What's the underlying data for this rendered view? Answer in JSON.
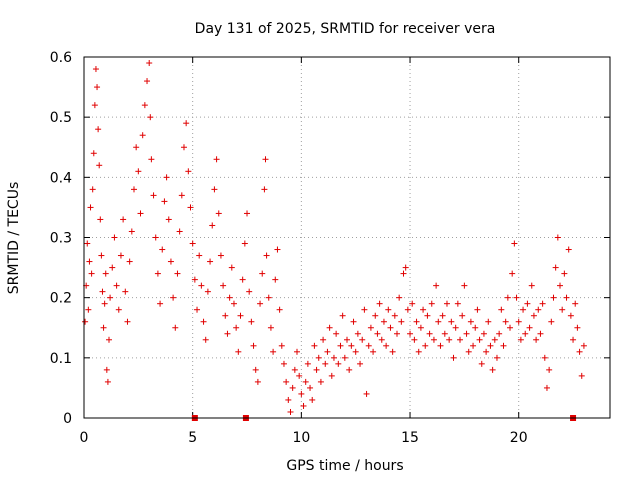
{
  "chart_data": {
    "type": "scatter",
    "title": "Day 131 of 2025, SRMTID for receiver vera",
    "xlabel": "GPS time / hours",
    "ylabel": "SRMTID / TECUs",
    "xlim": [
      0,
      24.2
    ],
    "ylim": [
      0,
      0.6
    ],
    "xticks": [
      0,
      5,
      10,
      15,
      20
    ],
    "xtick_labels": [
      "0",
      "5",
      "10",
      "15",
      "20"
    ],
    "yticks": [
      0,
      0.1,
      0.2,
      0.3,
      0.4,
      0.5,
      0.6
    ],
    "ytick_labels": [
      "0",
      "0.1",
      "0.2",
      "0.3",
      "0.4",
      "0.5",
      "0.6"
    ],
    "grid": true,
    "marker": "+",
    "color": "#e00000",
    "series": [
      {
        "name": "SRMTID",
        "points": [
          [
            0.05,
            0.16
          ],
          [
            0.1,
            0.22
          ],
          [
            0.15,
            0.29
          ],
          [
            0.2,
            0.18
          ],
          [
            0.25,
            0.26
          ],
          [
            0.3,
            0.35
          ],
          [
            0.35,
            0.24
          ],
          [
            0.4,
            0.38
          ],
          [
            0.45,
            0.44
          ],
          [
            0.5,
            0.52
          ],
          [
            0.55,
            0.58
          ],
          [
            0.6,
            0.55
          ],
          [
            0.65,
            0.48
          ],
          [
            0.7,
            0.42
          ],
          [
            0.75,
            0.33
          ],
          [
            0.8,
            0.27
          ],
          [
            0.85,
            0.21
          ],
          [
            0.9,
            0.15
          ],
          [
            0.95,
            0.19
          ],
          [
            1.0,
            0.24
          ],
          [
            1.05,
            0.08
          ],
          [
            1.1,
            0.06
          ],
          [
            1.15,
            0.13
          ],
          [
            1.2,
            0.2
          ],
          [
            1.3,
            0.25
          ],
          [
            1.4,
            0.3
          ],
          [
            1.5,
            0.22
          ],
          [
            1.6,
            0.18
          ],
          [
            1.7,
            0.27
          ],
          [
            1.8,
            0.33
          ],
          [
            1.9,
            0.21
          ],
          [
            2.0,
            0.16
          ],
          [
            2.1,
            0.26
          ],
          [
            2.2,
            0.31
          ],
          [
            2.3,
            0.38
          ],
          [
            2.4,
            0.45
          ],
          [
            2.5,
            0.41
          ],
          [
            2.6,
            0.34
          ],
          [
            2.7,
            0.47
          ],
          [
            2.8,
            0.52
          ],
          [
            2.9,
            0.56
          ],
          [
            3.0,
            0.59
          ],
          [
            3.05,
            0.5
          ],
          [
            3.1,
            0.43
          ],
          [
            3.2,
            0.37
          ],
          [
            3.3,
            0.3
          ],
          [
            3.4,
            0.24
          ],
          [
            3.5,
            0.19
          ],
          [
            3.6,
            0.28
          ],
          [
            3.7,
            0.36
          ],
          [
            3.8,
            0.4
          ],
          [
            3.9,
            0.33
          ],
          [
            4.0,
            0.26
          ],
          [
            4.1,
            0.2
          ],
          [
            4.2,
            0.15
          ],
          [
            4.3,
            0.24
          ],
          [
            4.4,
            0.31
          ],
          [
            4.5,
            0.37
          ],
          [
            4.6,
            0.45
          ],
          [
            4.7,
            0.49
          ],
          [
            4.8,
            0.41
          ],
          [
            4.9,
            0.35
          ],
          [
            5.0,
            0.29
          ],
          [
            5.1,
            0.23
          ],
          [
            5.2,
            0.18
          ],
          [
            5.3,
            0.27
          ],
          [
            5.4,
            0.22
          ],
          [
            5.5,
            0.16
          ],
          [
            5.6,
            0.13
          ],
          [
            5.7,
            0.21
          ],
          [
            5.8,
            0.26
          ],
          [
            5.9,
            0.32
          ],
          [
            6.0,
            0.38
          ],
          [
            6.1,
            0.43
          ],
          [
            6.2,
            0.34
          ],
          [
            6.3,
            0.27
          ],
          [
            6.4,
            0.22
          ],
          [
            6.5,
            0.17
          ],
          [
            6.6,
            0.14
          ],
          [
            6.7,
            0.2
          ],
          [
            6.8,
            0.25
          ],
          [
            6.9,
            0.19
          ],
          [
            7.0,
            0.15
          ],
          [
            7.1,
            0.11
          ],
          [
            7.2,
            0.17
          ],
          [
            7.3,
            0.23
          ],
          [
            7.4,
            0.29
          ],
          [
            7.5,
            0.34
          ],
          [
            7.6,
            0.21
          ],
          [
            7.7,
            0.16
          ],
          [
            7.8,
            0.12
          ],
          [
            7.9,
            0.08
          ],
          [
            8.0,
            0.06
          ],
          [
            8.1,
            0.19
          ],
          [
            8.2,
            0.24
          ],
          [
            8.3,
            0.38
          ],
          [
            8.35,
            0.43
          ],
          [
            8.4,
            0.27
          ],
          [
            8.5,
            0.2
          ],
          [
            8.6,
            0.15
          ],
          [
            8.7,
            0.11
          ],
          [
            8.8,
            0.23
          ],
          [
            8.9,
            0.28
          ],
          [
            9.0,
            0.18
          ],
          [
            9.1,
            0.12
          ],
          [
            9.2,
            0.09
          ],
          [
            9.3,
            0.06
          ],
          [
            9.4,
            0.03
          ],
          [
            9.5,
            0.01
          ],
          [
            9.6,
            0.05
          ],
          [
            9.7,
            0.08
          ],
          [
            9.8,
            0.11
          ],
          [
            9.9,
            0.07
          ],
          [
            10.0,
            0.04
          ],
          [
            10.1,
            0.02
          ],
          [
            10.2,
            0.06
          ],
          [
            10.3,
            0.09
          ],
          [
            10.4,
            0.05
          ],
          [
            10.5,
            0.03
          ],
          [
            10.6,
            0.12
          ],
          [
            10.7,
            0.08
          ],
          [
            10.8,
            0.1
          ],
          [
            10.9,
            0.06
          ],
          [
            11.0,
            0.13
          ],
          [
            11.1,
            0.09
          ],
          [
            11.2,
            0.11
          ],
          [
            11.3,
            0.15
          ],
          [
            11.4,
            0.07
          ],
          [
            11.5,
            0.1
          ],
          [
            11.6,
            0.14
          ],
          [
            11.7,
            0.09
          ],
          [
            11.8,
            0.12
          ],
          [
            11.9,
            0.17
          ],
          [
            12.0,
            0.1
          ],
          [
            12.1,
            0.13
          ],
          [
            12.2,
            0.08
          ],
          [
            12.3,
            0.12
          ],
          [
            12.4,
            0.16
          ],
          [
            12.5,
            0.11
          ],
          [
            12.6,
            0.14
          ],
          [
            12.7,
            0.09
          ],
          [
            12.8,
            0.13
          ],
          [
            12.9,
            0.18
          ],
          [
            13.0,
            0.04
          ],
          [
            13.1,
            0.12
          ],
          [
            13.2,
            0.15
          ],
          [
            13.3,
            0.11
          ],
          [
            13.4,
            0.17
          ],
          [
            13.5,
            0.14
          ],
          [
            13.6,
            0.19
          ],
          [
            13.7,
            0.13
          ],
          [
            13.8,
            0.16
          ],
          [
            13.9,
            0.12
          ],
          [
            14.0,
            0.18
          ],
          [
            14.1,
            0.15
          ],
          [
            14.2,
            0.11
          ],
          [
            14.3,
            0.17
          ],
          [
            14.4,
            0.14
          ],
          [
            14.5,
            0.2
          ],
          [
            14.6,
            0.16
          ],
          [
            14.7,
            0.24
          ],
          [
            14.8,
            0.25
          ],
          [
            14.9,
            0.18
          ],
          [
            15.0,
            0.14
          ],
          [
            15.1,
            0.19
          ],
          [
            15.2,
            0.13
          ],
          [
            15.3,
            0.16
          ],
          [
            15.4,
            0.11
          ],
          [
            15.5,
            0.15
          ],
          [
            15.6,
            0.18
          ],
          [
            15.7,
            0.12
          ],
          [
            15.8,
            0.17
          ],
          [
            15.9,
            0.14
          ],
          [
            16.0,
            0.19
          ],
          [
            16.1,
            0.13
          ],
          [
            16.2,
            0.22
          ],
          [
            16.3,
            0.16
          ],
          [
            16.4,
            0.12
          ],
          [
            16.5,
            0.17
          ],
          [
            16.6,
            0.14
          ],
          [
            16.7,
            0.19
          ],
          [
            16.8,
            0.13
          ],
          [
            16.9,
            0.16
          ],
          [
            17.0,
            0.1
          ],
          [
            17.1,
            0.15
          ],
          [
            17.2,
            0.19
          ],
          [
            17.3,
            0.13
          ],
          [
            17.4,
            0.17
          ],
          [
            17.5,
            0.22
          ],
          [
            17.6,
            0.14
          ],
          [
            17.7,
            0.11
          ],
          [
            17.8,
            0.16
          ],
          [
            17.9,
            0.12
          ],
          [
            18.0,
            0.15
          ],
          [
            18.1,
            0.18
          ],
          [
            18.2,
            0.13
          ],
          [
            18.3,
            0.09
          ],
          [
            18.4,
            0.14
          ],
          [
            18.5,
            0.11
          ],
          [
            18.6,
            0.16
          ],
          [
            18.7,
            0.12
          ],
          [
            18.8,
            0.08
          ],
          [
            18.9,
            0.13
          ],
          [
            19.0,
            0.1
          ],
          [
            19.1,
            0.14
          ],
          [
            19.2,
            0.18
          ],
          [
            19.3,
            0.12
          ],
          [
            19.4,
            0.16
          ],
          [
            19.5,
            0.2
          ],
          [
            19.6,
            0.15
          ],
          [
            19.7,
            0.24
          ],
          [
            19.8,
            0.29
          ],
          [
            19.9,
            0.2
          ],
          [
            20.0,
            0.16
          ],
          [
            20.1,
            0.13
          ],
          [
            20.2,
            0.18
          ],
          [
            20.3,
            0.14
          ],
          [
            20.4,
            0.19
          ],
          [
            20.5,
            0.15
          ],
          [
            20.6,
            0.22
          ],
          [
            20.7,
            0.17
          ],
          [
            20.8,
            0.13
          ],
          [
            20.9,
            0.18
          ],
          [
            21.0,
            0.14
          ],
          [
            21.1,
            0.19
          ],
          [
            21.2,
            0.1
          ],
          [
            21.3,
            0.05
          ],
          [
            21.4,
            0.08
          ],
          [
            21.5,
            0.16
          ],
          [
            21.6,
            0.2
          ],
          [
            21.7,
            0.25
          ],
          [
            21.8,
            0.3
          ],
          [
            21.9,
            0.22
          ],
          [
            22.0,
            0.18
          ],
          [
            22.1,
            0.24
          ],
          [
            22.2,
            0.2
          ],
          [
            22.3,
            0.28
          ],
          [
            22.4,
            0.17
          ],
          [
            22.5,
            0.13
          ],
          [
            22.6,
            0.19
          ],
          [
            22.7,
            0.15
          ],
          [
            22.8,
            0.11
          ],
          [
            22.9,
            0.07
          ],
          [
            23.0,
            0.12
          ]
        ]
      }
    ],
    "markers_on_axis": [
      5.1,
      7.45,
      22.5
    ]
  }
}
